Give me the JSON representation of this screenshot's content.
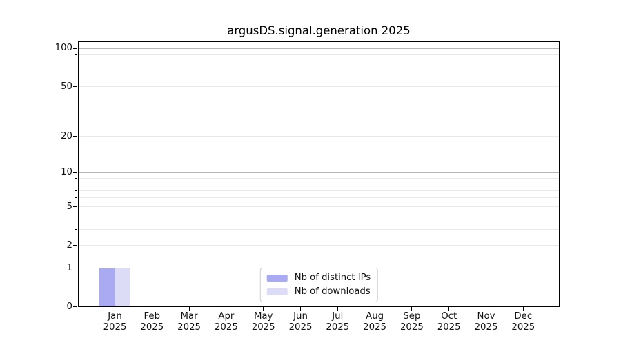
{
  "chart_data": {
    "type": "bar",
    "title": "argusDS.signal.generation 2025",
    "categories": [
      "Jan 2025",
      "Feb 2025",
      "Mar 2025",
      "Apr 2025",
      "May 2025",
      "Jun 2025",
      "Jul 2025",
      "Aug 2025",
      "Sep 2025",
      "Oct 2025",
      "Nov 2025",
      "Dec 2025"
    ],
    "x_tick_months": [
      "Jan",
      "Feb",
      "Mar",
      "Apr",
      "May",
      "Jun",
      "Jul",
      "Aug",
      "Sep",
      "Oct",
      "Nov",
      "Dec"
    ],
    "x_tick_year": "2025",
    "series": [
      {
        "name": "Nb of distinct IPs",
        "color": "#aaaaf2",
        "values": [
          1,
          0,
          0,
          0,
          0,
          0,
          0,
          0,
          0,
          0,
          0,
          0
        ]
      },
      {
        "name": "Nb of downloads",
        "color": "#dcdcf7",
        "values": [
          1,
          0,
          0,
          0,
          0,
          0,
          0,
          0,
          0,
          0,
          0,
          0
        ]
      }
    ],
    "yscale": "symlog",
    "ylim": [
      0,
      114
    ],
    "y_labeled_ticks": [
      0,
      1,
      2,
      5,
      10,
      20,
      50,
      100
    ],
    "y_decade_gridlines": [
      1,
      10,
      100
    ],
    "y_minor_gridlines": [
      2,
      3,
      4,
      5,
      6,
      7,
      8,
      9,
      20,
      30,
      40,
      50,
      60,
      70,
      80,
      90
    ],
    "grid": true,
    "legend": {
      "items": [
        "Nb of distinct IPs",
        "Nb of downloads"
      ],
      "position": "lower center"
    }
  },
  "colors": {
    "background": "#ffffff",
    "spine": "#000000",
    "decade_gridline": "#b6b6b6",
    "minor_gridline": "#e8e8e8",
    "text": "#111111",
    "legend_border": "#cccccc"
  }
}
